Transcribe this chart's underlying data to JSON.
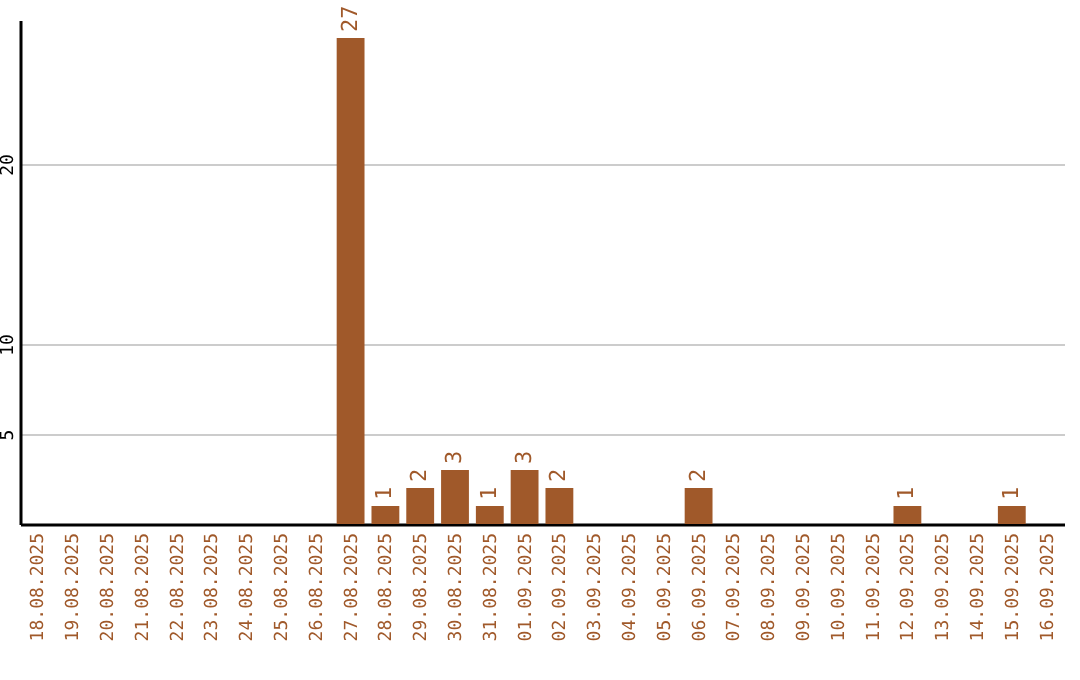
{
  "chart_data": {
    "type": "bar",
    "categories": [
      "18.08.2025",
      "19.08.2025",
      "20.08.2025",
      "21.08.2025",
      "22.08.2025",
      "23.08.2025",
      "24.08.2025",
      "25.08.2025",
      "26.08.2025",
      "27.08.2025",
      "28.08.2025",
      "29.08.2025",
      "30.08.2025",
      "31.08.2025",
      "01.09.2025",
      "02.09.2025",
      "03.09.2025",
      "04.09.2025",
      "05.09.2025",
      "06.09.2025",
      "07.09.2025",
      "08.09.2025",
      "09.09.2025",
      "10.09.2025",
      "11.09.2025",
      "12.09.2025",
      "13.09.2025",
      "14.09.2025",
      "15.09.2025",
      "16.09.2025"
    ],
    "values": [
      null,
      null,
      null,
      null,
      null,
      null,
      null,
      null,
      null,
      27,
      1,
      2,
      3,
      1,
      3,
      2,
      null,
      null,
      null,
      2,
      null,
      null,
      null,
      null,
      null,
      1,
      null,
      null,
      1,
      null
    ],
    "color": "#a0592a",
    "ylim": [
      0,
      28
    ],
    "yticks": [
      5,
      10,
      20
    ],
    "grid": "y",
    "data_labels": true
  }
}
